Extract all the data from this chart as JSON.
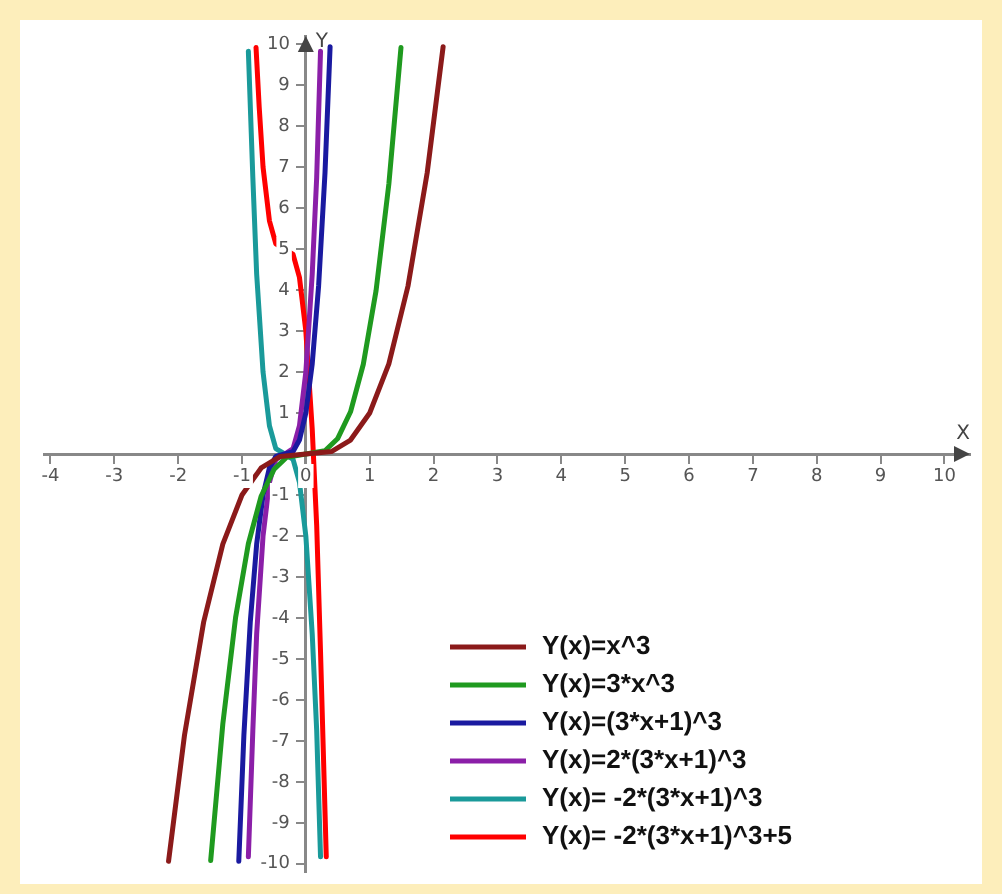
{
  "chart_data": {
    "type": "line",
    "xlabel": "X",
    "ylabel": "Y",
    "xlim": [
      -4.1,
      10.4
    ],
    "ylim": [
      -10.2,
      10.2
    ],
    "xticks": [
      -4,
      -3,
      -2,
      -1,
      0,
      1,
      2,
      3,
      4,
      5,
      6,
      7,
      8,
      9,
      10
    ],
    "yticks": [
      -10,
      -9,
      -8,
      -7,
      -6,
      -5,
      -4,
      -3,
      -2,
      -1,
      1,
      2,
      3,
      4,
      5,
      6,
      7,
      8,
      9,
      10
    ],
    "grid": false,
    "legend": "bottom right",
    "marker": "none",
    "line_style": "solid",
    "series": [
      {
        "name": "Y(x)=x^3",
        "color": "#8b1a1a",
        "x": [
          -2.15,
          -1.9,
          -1.6,
          -1.3,
          -1.0,
          -0.7,
          -0.4,
          0,
          0.4,
          0.7,
          1.0,
          1.3,
          1.6,
          1.9,
          2.15
        ],
        "values": [
          -9.94,
          -6.86,
          -4.1,
          -2.2,
          -1.0,
          -0.34,
          -0.06,
          0,
          0.06,
          0.34,
          1.0,
          2.2,
          4.1,
          6.86,
          9.94
        ]
      },
      {
        "name": "Y(x)=3*x^3",
        "color": "#1f9a1f",
        "x": [
          -1.49,
          -1.3,
          -1.1,
          -0.9,
          -0.7,
          -0.5,
          -0.3,
          0,
          0.3,
          0.5,
          0.7,
          0.9,
          1.1,
          1.3,
          1.49
        ],
        "values": [
          -9.92,
          -6.59,
          -3.99,
          -2.19,
          -1.03,
          -0.38,
          -0.08,
          0,
          0.08,
          0.38,
          1.03,
          2.19,
          3.99,
          6.59,
          9.92
        ]
      },
      {
        "name": "Y(x)=(3*x+1)^3",
        "color": "#1a1aa0",
        "x": [
          -1.05,
          -0.97,
          -0.87,
          -0.77,
          -0.67,
          -0.57,
          -0.47,
          -0.33,
          -0.2,
          -0.1,
          0,
          0.1,
          0.2,
          0.3,
          0.38
        ],
        "values": [
          -9.94,
          -6.86,
          -4.1,
          -2.2,
          -1.0,
          -0.34,
          -0.06,
          0,
          0.06,
          0.34,
          1.0,
          2.2,
          4.1,
          6.86,
          9.94
        ]
      },
      {
        "name": "Y(x)=2*(3*x+1)^3",
        "color": "#8b1fa8",
        "x": [
          -0.9,
          -0.83,
          -0.77,
          -0.67,
          -0.57,
          -0.47,
          -0.33,
          -0.2,
          -0.1,
          0,
          0.1,
          0.17,
          0.23
        ],
        "values": [
          -9.83,
          -6.75,
          -4.39,
          -2.0,
          -0.69,
          -0.13,
          0,
          0.13,
          0.69,
          2.0,
          4.39,
          6.75,
          9.83
        ]
      },
      {
        "name": "Y(x)= -2*(3*x+1)^3",
        "color": "#1a9a9a",
        "x": [
          -0.9,
          -0.83,
          -0.77,
          -0.67,
          -0.57,
          -0.47,
          -0.33,
          -0.2,
          -0.1,
          0,
          0.1,
          0.17,
          0.23
        ],
        "values": [
          9.83,
          6.75,
          4.39,
          2.0,
          0.69,
          0.13,
          0,
          -0.13,
          -0.69,
          -2.0,
          -4.39,
          -6.75,
          -9.83
        ]
      },
      {
        "name": "Y(x)= -2*(3*x+1)^3+5",
        "color": "#ff0000",
        "x": [
          -0.78,
          -0.73,
          -0.67,
          -0.57,
          -0.47,
          -0.33,
          -0.2,
          -0.1,
          0,
          0.1,
          0.17,
          0.23,
          0.32
        ],
        "values": [
          9.92,
          8.46,
          7.0,
          5.69,
          5.13,
          5.0,
          4.87,
          4.31,
          3.0,
          0.61,
          -1.75,
          -4.83,
          -9.83
        ]
      }
    ]
  }
}
